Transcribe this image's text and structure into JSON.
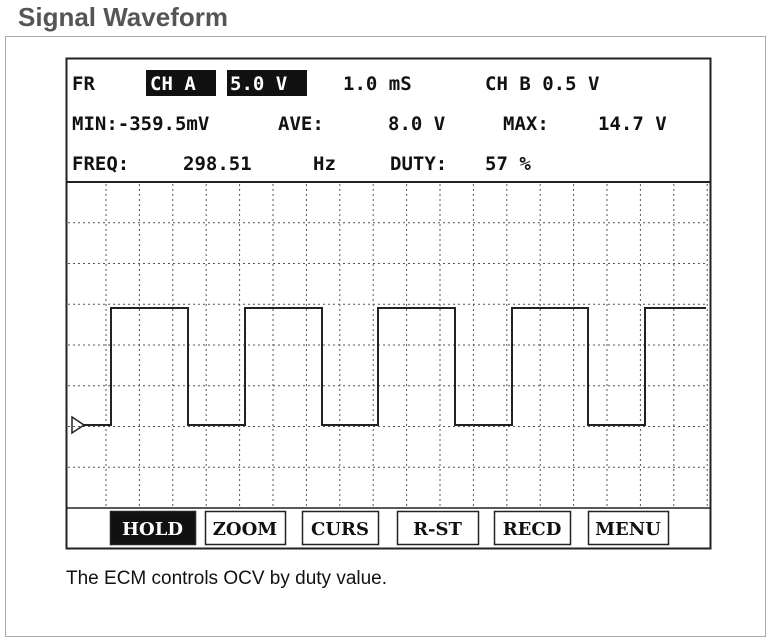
{
  "header": {
    "title": "Signal Waveform"
  },
  "screen": {
    "status": {
      "frame": "FR",
      "channel_a": "CH A",
      "volts_a": "5.0 V",
      "timebase": "1.0 mS",
      "channel_b": "CH B 0.5 V"
    },
    "measurements": {
      "min": "MIN:-359.5mV",
      "ave_label": "AVE:",
      "ave_value": "8.0 V",
      "max_label": "MAX:",
      "max_value": "14.7 V",
      "freq_label": "FREQ:",
      "freq_value": "298.51",
      "freq_unit": "Hz",
      "duty_label": "DUTY:",
      "duty_value": "57 %"
    },
    "buttons": [
      "HOLD",
      "ZOOM",
      "CURS",
      "R-ST",
      "RECD",
      "MENU"
    ]
  },
  "caption": "The ECM controls OCV by duty value."
}
